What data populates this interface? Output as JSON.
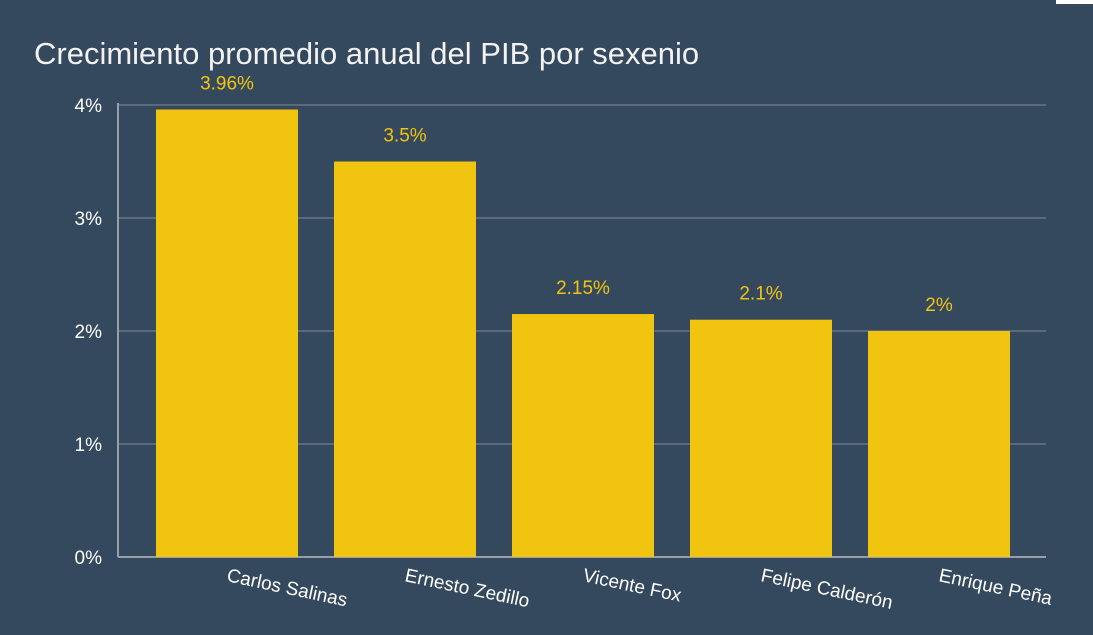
{
  "chart_data": {
    "type": "bar",
    "title": "Crecimiento promedio anual del PIB por sexenio",
    "categories": [
      "Carlos Salinas",
      "Ernesto Zedillo",
      "Vicente Fox",
      "Felipe Calderón",
      "Enrique Peña"
    ],
    "values": [
      3.96,
      3.5,
      2.15,
      2.1,
      2.0
    ],
    "data_labels": [
      "3.96%",
      "3.5%",
      "2.15%",
      "2.1%",
      "2%"
    ],
    "ylim": [
      0,
      4
    ],
    "yticks": [
      0,
      1,
      2,
      3,
      4
    ],
    "ytick_labels": [
      "0%",
      "1%",
      "2%",
      "3%",
      "4%"
    ],
    "xlabel": "",
    "ylabel": "",
    "grid": true,
    "legend": false,
    "colors": {
      "background": "#34495e",
      "bar": "#f1c40f",
      "data_label": "#f1c40f",
      "text": "#ffffff",
      "grid": "#7f8c9a"
    }
  }
}
